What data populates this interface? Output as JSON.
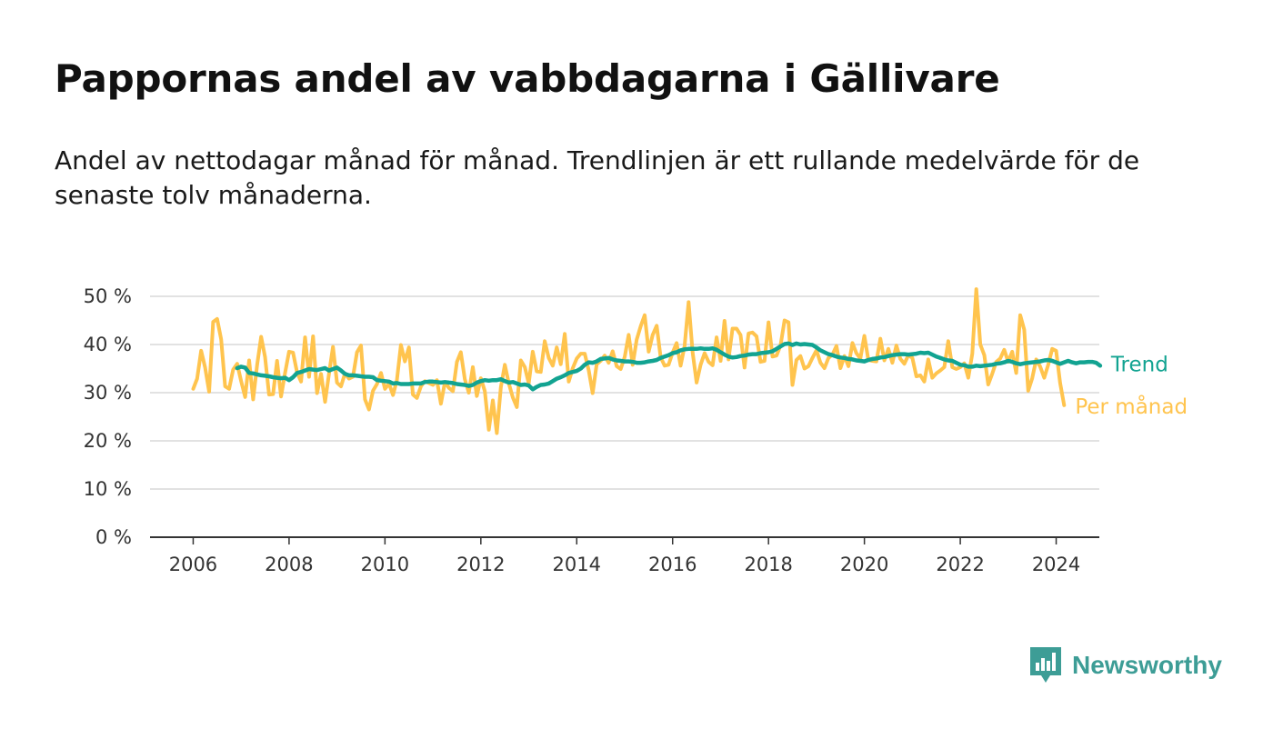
{
  "title": "Pappornas andel av vabbdagarna i Gällivare",
  "subtitle": "Andel av nettodagar månad för månad. Trendlinjen är ett rullande medelvärde för de senaste tolv månaderna.",
  "brand": {
    "name": "Newsworthy",
    "icon": "newsworthy-logo-icon",
    "color": "#3d9d96"
  },
  "chart_data": {
    "type": "line",
    "x_axis": {
      "ticks": [
        2006,
        2008,
        2010,
        2012,
        2014,
        2016,
        2018,
        2020,
        2022,
        2024
      ],
      "tick_labels": [
        "2006",
        "2008",
        "2010",
        "2012",
        "2014",
        "2016",
        "2018",
        "2020",
        "2022",
        "2024"
      ],
      "range": [
        2005.1,
        2024.9
      ]
    },
    "y_axis": {
      "ticks": [
        0,
        10,
        20,
        30,
        40,
        50
      ],
      "tick_labels": [
        "0 %",
        "10 %",
        "20 %",
        "30 %",
        "40 %",
        "50 %"
      ],
      "range": [
        0,
        50
      ],
      "unit": "%"
    },
    "grid": true,
    "legend": "direct labels at line ends (right)",
    "series": [
      {
        "name": "Per månad",
        "color": "#ffc44e",
        "start": "2006-01",
        "values": [
          30.8,
          32.9,
          38.7,
          35.2,
          30.2,
          44.7,
          45.3,
          41.1,
          31.3,
          30.8,
          34.8,
          36.0,
          32.4,
          29.1,
          36.7,
          28.6,
          35.8,
          41.6,
          37.4,
          29.6,
          29.7,
          36.6,
          29.2,
          34.1,
          38.5,
          38.3,
          34.2,
          32.3,
          41.5,
          33.3,
          41.7,
          29.9,
          33.9,
          28.1,
          33.9,
          39.5,
          32.1,
          31.3,
          34.0,
          32.9,
          33.3,
          38.4,
          39.8,
          28.6,
          26.5,
          30.4,
          31.8,
          34.1,
          30.8,
          31.9,
          29.5,
          32.6,
          39.9,
          36.5,
          39.4,
          29.6,
          28.9,
          31.3,
          32.4,
          32.0,
          31.6,
          32.6,
          27.7,
          32.2,
          31.0,
          30.3,
          36.4,
          38.4,
          32.8,
          30.0,
          35.3,
          29.3,
          33.0,
          30.3,
          22.3,
          28.4,
          21.6,
          31.1,
          35.8,
          31.9,
          29.0,
          27.0,
          36.7,
          35.3,
          31.9,
          38.5,
          34.4,
          34.3,
          40.7,
          37.2,
          35.6,
          39.4,
          35.9,
          42.2,
          32.3,
          35.1,
          37.1,
          38.1,
          38.1,
          34.6,
          29.9,
          35.9,
          36.6,
          37.7,
          36.2,
          38.6,
          35.5,
          34.9,
          37.4,
          42.0,
          35.8,
          41.0,
          43.8,
          46.1,
          38.5,
          42.0,
          43.9,
          37.4,
          35.6,
          35.8,
          38.3,
          40.3,
          35.6,
          39.7,
          48.8,
          38.4,
          32.1,
          35.8,
          38.2,
          36.4,
          35.7,
          41.5,
          36.6,
          44.9,
          36.9,
          43.3,
          43.3,
          42.0,
          35.2,
          42.3,
          42.5,
          41.7,
          36.4,
          36.6,
          44.6,
          37.5,
          37.7,
          39.8,
          45.0,
          44.6,
          31.6,
          36.8,
          37.6,
          35.0,
          35.5,
          37.2,
          38.8,
          36.2,
          35.1,
          37.2,
          37.9,
          39.7,
          35.1,
          37.6,
          35.5,
          40.3,
          38.2,
          37.1,
          41.8,
          36.8,
          36.6,
          36.5,
          41.2,
          36.7,
          39.1,
          36.2,
          39.8,
          37.0,
          36.0,
          37.8,
          37.2,
          33.4,
          33.6,
          32.3,
          36.9,
          33.1,
          34.0,
          34.6,
          35.3,
          40.7,
          35.3,
          34.9,
          35.3,
          36.1,
          33.1,
          38.1,
          51.5,
          40.0,
          37.8,
          31.7,
          33.9,
          36.4,
          37.1,
          38.9,
          36.4,
          38.5,
          34.1,
          46.1,
          43.1,
          30.4,
          33.0,
          36.9,
          35.4,
          33.1,
          35.8,
          39.1,
          38.7,
          32.0,
          27.4
        ]
      },
      {
        "name": "Trend",
        "color": "#12a391",
        "start": "2006-12",
        "values": [
          35.1,
          35.4,
          35.2,
          34.1,
          34.0,
          33.8,
          33.6,
          33.5,
          33.4,
          33.2,
          33.1,
          33.0,
          33.1,
          32.6,
          33.2,
          34.1,
          34.3,
          34.6,
          34.9,
          34.8,
          34.7,
          34.9,
          35.1,
          34.6,
          34.9,
          35.2,
          34.6,
          33.9,
          33.6,
          33.6,
          33.5,
          33.4,
          33.3,
          33.3,
          33.2,
          32.6,
          32.5,
          32.4,
          32.3,
          31.9,
          32.0,
          31.8,
          31.8,
          31.8,
          31.9,
          31.9,
          31.9,
          32.2,
          32.3,
          32.3,
          32.2,
          32.1,
          32.2,
          32.1,
          32.0,
          31.8,
          31.7,
          31.6,
          31.4,
          31.6,
          32.1,
          32.4,
          32.6,
          32.5,
          32.6,
          32.6,
          32.8,
          32.4,
          32.1,
          32.2,
          31.9,
          31.6,
          31.7,
          31.5,
          30.7,
          31.2,
          31.6,
          31.7,
          31.9,
          32.4,
          32.9,
          33.2,
          33.6,
          34.1,
          34.3,
          34.5,
          35.0,
          35.8,
          36.3,
          36.2,
          36.5,
          37.0,
          37.1,
          37.2,
          36.9,
          36.7,
          36.6,
          36.5,
          36.5,
          36.4,
          36.2,
          36.2,
          36.3,
          36.5,
          36.6,
          36.8,
          37.2,
          37.5,
          37.8,
          38.2,
          38.4,
          38.8,
          39.0,
          39.1,
          39.1,
          39.1,
          39.2,
          39.1,
          39.1,
          39.2,
          38.9,
          38.4,
          37.9,
          37.5,
          37.3,
          37.4,
          37.6,
          37.7,
          37.9,
          38.0,
          38.0,
          38.2,
          38.3,
          38.4,
          38.6,
          39.1,
          39.6,
          40.1,
          40.2,
          39.9,
          40.2,
          40.0,
          40.1,
          40.0,
          39.9,
          39.4,
          38.8,
          38.4,
          38.0,
          37.8,
          37.5,
          37.3,
          37.2,
          37.0,
          36.9,
          36.7,
          36.6,
          36.5,
          36.8,
          37.0,
          37.1,
          37.3,
          37.4,
          37.6,
          37.8,
          37.9,
          38.0,
          38.0,
          37.9,
          38.0,
          38.1,
          38.3,
          38.2,
          38.3,
          37.9,
          37.5,
          37.2,
          36.9,
          36.7,
          36.6,
          36.2,
          35.8,
          35.7,
          35.4,
          35.4,
          35.6,
          35.5,
          35.6,
          35.7,
          35.8,
          36.0,
          36.1,
          36.3,
          36.6,
          36.4,
          36.1,
          35.9,
          36.1,
          36.2,
          36.3,
          36.4,
          36.5,
          36.7,
          36.8,
          36.6,
          36.3,
          36.0,
          36.3,
          36.6,
          36.3,
          36.1,
          36.3,
          36.3,
          36.4,
          36.4,
          36.2,
          35.6
        ]
      }
    ]
  }
}
